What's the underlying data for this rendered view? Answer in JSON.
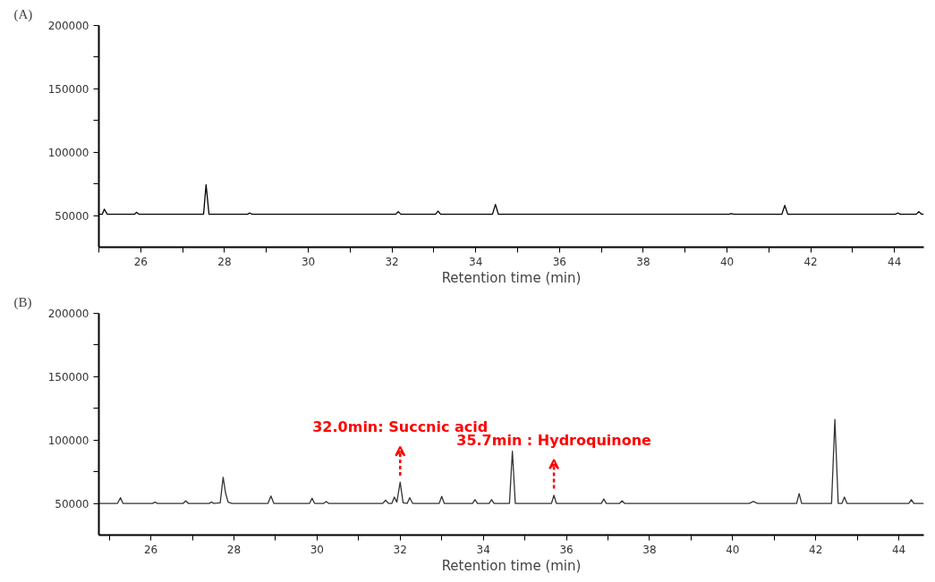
{
  "chart_data": [
    {
      "type": "line",
      "title": "(A)",
      "xlabel": "Retention time (min)",
      "xlim": [
        25,
        44.7
      ],
      "ylim": [
        25000,
        200000
      ],
      "xticks": [
        {
          "value": 25,
          "label": null
        },
        26,
        {
          "value": 27,
          "label": null
        },
        28,
        {
          "value": 29,
          "label": null
        },
        30,
        {
          "value": 31,
          "label": null
        },
        32,
        {
          "value": 33,
          "label": null
        },
        34,
        {
          "value": 35,
          "label": null
        },
        36,
        {
          "value": 37,
          "label": null
        },
        38,
        {
          "value": 39,
          "label": null
        },
        40,
        {
          "value": 41,
          "label": null
        },
        42,
        {
          "value": 43,
          "label": null
        },
        44
      ],
      "yticks": [
        50000,
        {
          "value": 75000,
          "label": null
        },
        100000,
        {
          "value": 125000,
          "label": null
        },
        150000,
        {
          "value": 175000,
          "label": null
        },
        200000
      ],
      "grid": false,
      "marker": "none",
      "line_style": "solid",
      "series": [
        {
          "color": "#000000",
          "x": [
            25.0,
            25.08,
            25.13,
            25.2,
            25.85,
            25.9,
            25.96,
            27.5,
            27.56,
            27.63,
            28.55,
            28.6,
            28.66,
            32.09,
            32.15,
            32.21,
            33.04,
            33.1,
            33.16,
            34.4,
            34.47,
            34.54,
            40.05,
            40.1,
            40.16,
            41.31,
            41.38,
            41.45,
            44.02,
            44.08,
            44.14,
            44.52,
            44.58,
            44.65,
            44.7
          ],
          "values": [
            51000,
            51000,
            55000,
            51000,
            51000,
            52500,
            51000,
            51000,
            74300,
            51000,
            51000,
            52000,
            51000,
            51000,
            53000,
            51000,
            51000,
            53500,
            51000,
            51000,
            58800,
            51000,
            51000,
            51500,
            51000,
            51000,
            58000,
            51000,
            51000,
            52000,
            51000,
            51000,
            53000,
            51000,
            51000
          ]
        }
      ]
    },
    {
      "type": "line",
      "title": "(B)",
      "xlabel": "Retention time (min)",
      "xlim": [
        24.75,
        44.6
      ],
      "ylim": [
        25000,
        200000
      ],
      "xticks": [
        {
          "value": 25,
          "label": null
        },
        26,
        {
          "value": 27,
          "label": null
        },
        28,
        {
          "value": 29,
          "label": null
        },
        30,
        {
          "value": 31,
          "label": null
        },
        32,
        {
          "value": 33,
          "label": null
        },
        34,
        {
          "value": 35,
          "label": null
        },
        36,
        {
          "value": 37,
          "label": null
        },
        38,
        {
          "value": 39,
          "label": null
        },
        40,
        {
          "value": 41,
          "label": null
        },
        42,
        {
          "value": 43,
          "label": null
        },
        44
      ],
      "yticks": [
        50000,
        {
          "value": 75000,
          "label": null
        },
        100000,
        {
          "value": 125000,
          "label": null
        },
        150000,
        {
          "value": 175000,
          "label": null
        },
        200000
      ],
      "grid": false,
      "marker": "none",
      "line_style": "solid",
      "annotations": [
        {
          "text": "32.0min: Succnic acid",
          "x": 32.0,
          "y": 66700
        },
        {
          "text": "35.7min : Hydroquinone",
          "x": 35.7,
          "y": 56400
        }
      ],
      "series": [
        {
          "color": "#333333",
          "x": [
            24.75,
            25.2,
            25.27,
            25.33,
            26.04,
            26.1,
            26.16,
            26.78,
            26.84,
            26.9,
            27.4,
            27.46,
            27.52,
            27.67,
            27.74,
            27.8,
            27.86,
            27.95,
            28.82,
            28.89,
            28.96,
            29.82,
            29.88,
            29.94,
            30.16,
            30.22,
            30.28,
            31.58,
            31.65,
            31.72,
            31.8,
            31.86,
            31.92,
            32.0,
            32.07,
            32.17,
            32.23,
            32.3,
            32.94,
            33.0,
            33.06,
            33.74,
            33.8,
            33.86,
            34.14,
            34.2,
            34.26,
            34.63,
            34.7,
            34.77,
            35.64,
            35.7,
            35.76,
            36.84,
            36.9,
            36.96,
            37.28,
            37.34,
            37.4,
            40.4,
            40.5,
            40.6,
            41.54,
            41.6,
            41.66,
            42.38,
            42.46,
            42.54,
            42.63,
            42.69,
            42.75,
            44.24,
            44.3,
            44.36,
            44.6
          ],
          "values": [
            50000,
            50000,
            54500,
            50000,
            50000,
            51000,
            50000,
            50000,
            52000,
            50000,
            50000,
            51000,
            50000,
            50500,
            70600,
            58000,
            51000,
            50000,
            50000,
            55800,
            50000,
            50000,
            54000,
            50000,
            50000,
            51500,
            50000,
            50000,
            52500,
            50000,
            50000,
            55000,
            51000,
            66700,
            50500,
            50000,
            54500,
            50000,
            50000,
            55500,
            50000,
            50000,
            53000,
            50000,
            50000,
            53000,
            50000,
            50000,
            91200,
            50000,
            50000,
            56400,
            50000,
            50000,
            53500,
            50000,
            50000,
            52000,
            50000,
            50000,
            51500,
            50000,
            50000,
            57700,
            50000,
            50000,
            116300,
            50000,
            50000,
            55000,
            50000,
            50000,
            53000,
            50000,
            50000
          ]
        }
      ]
    }
  ]
}
